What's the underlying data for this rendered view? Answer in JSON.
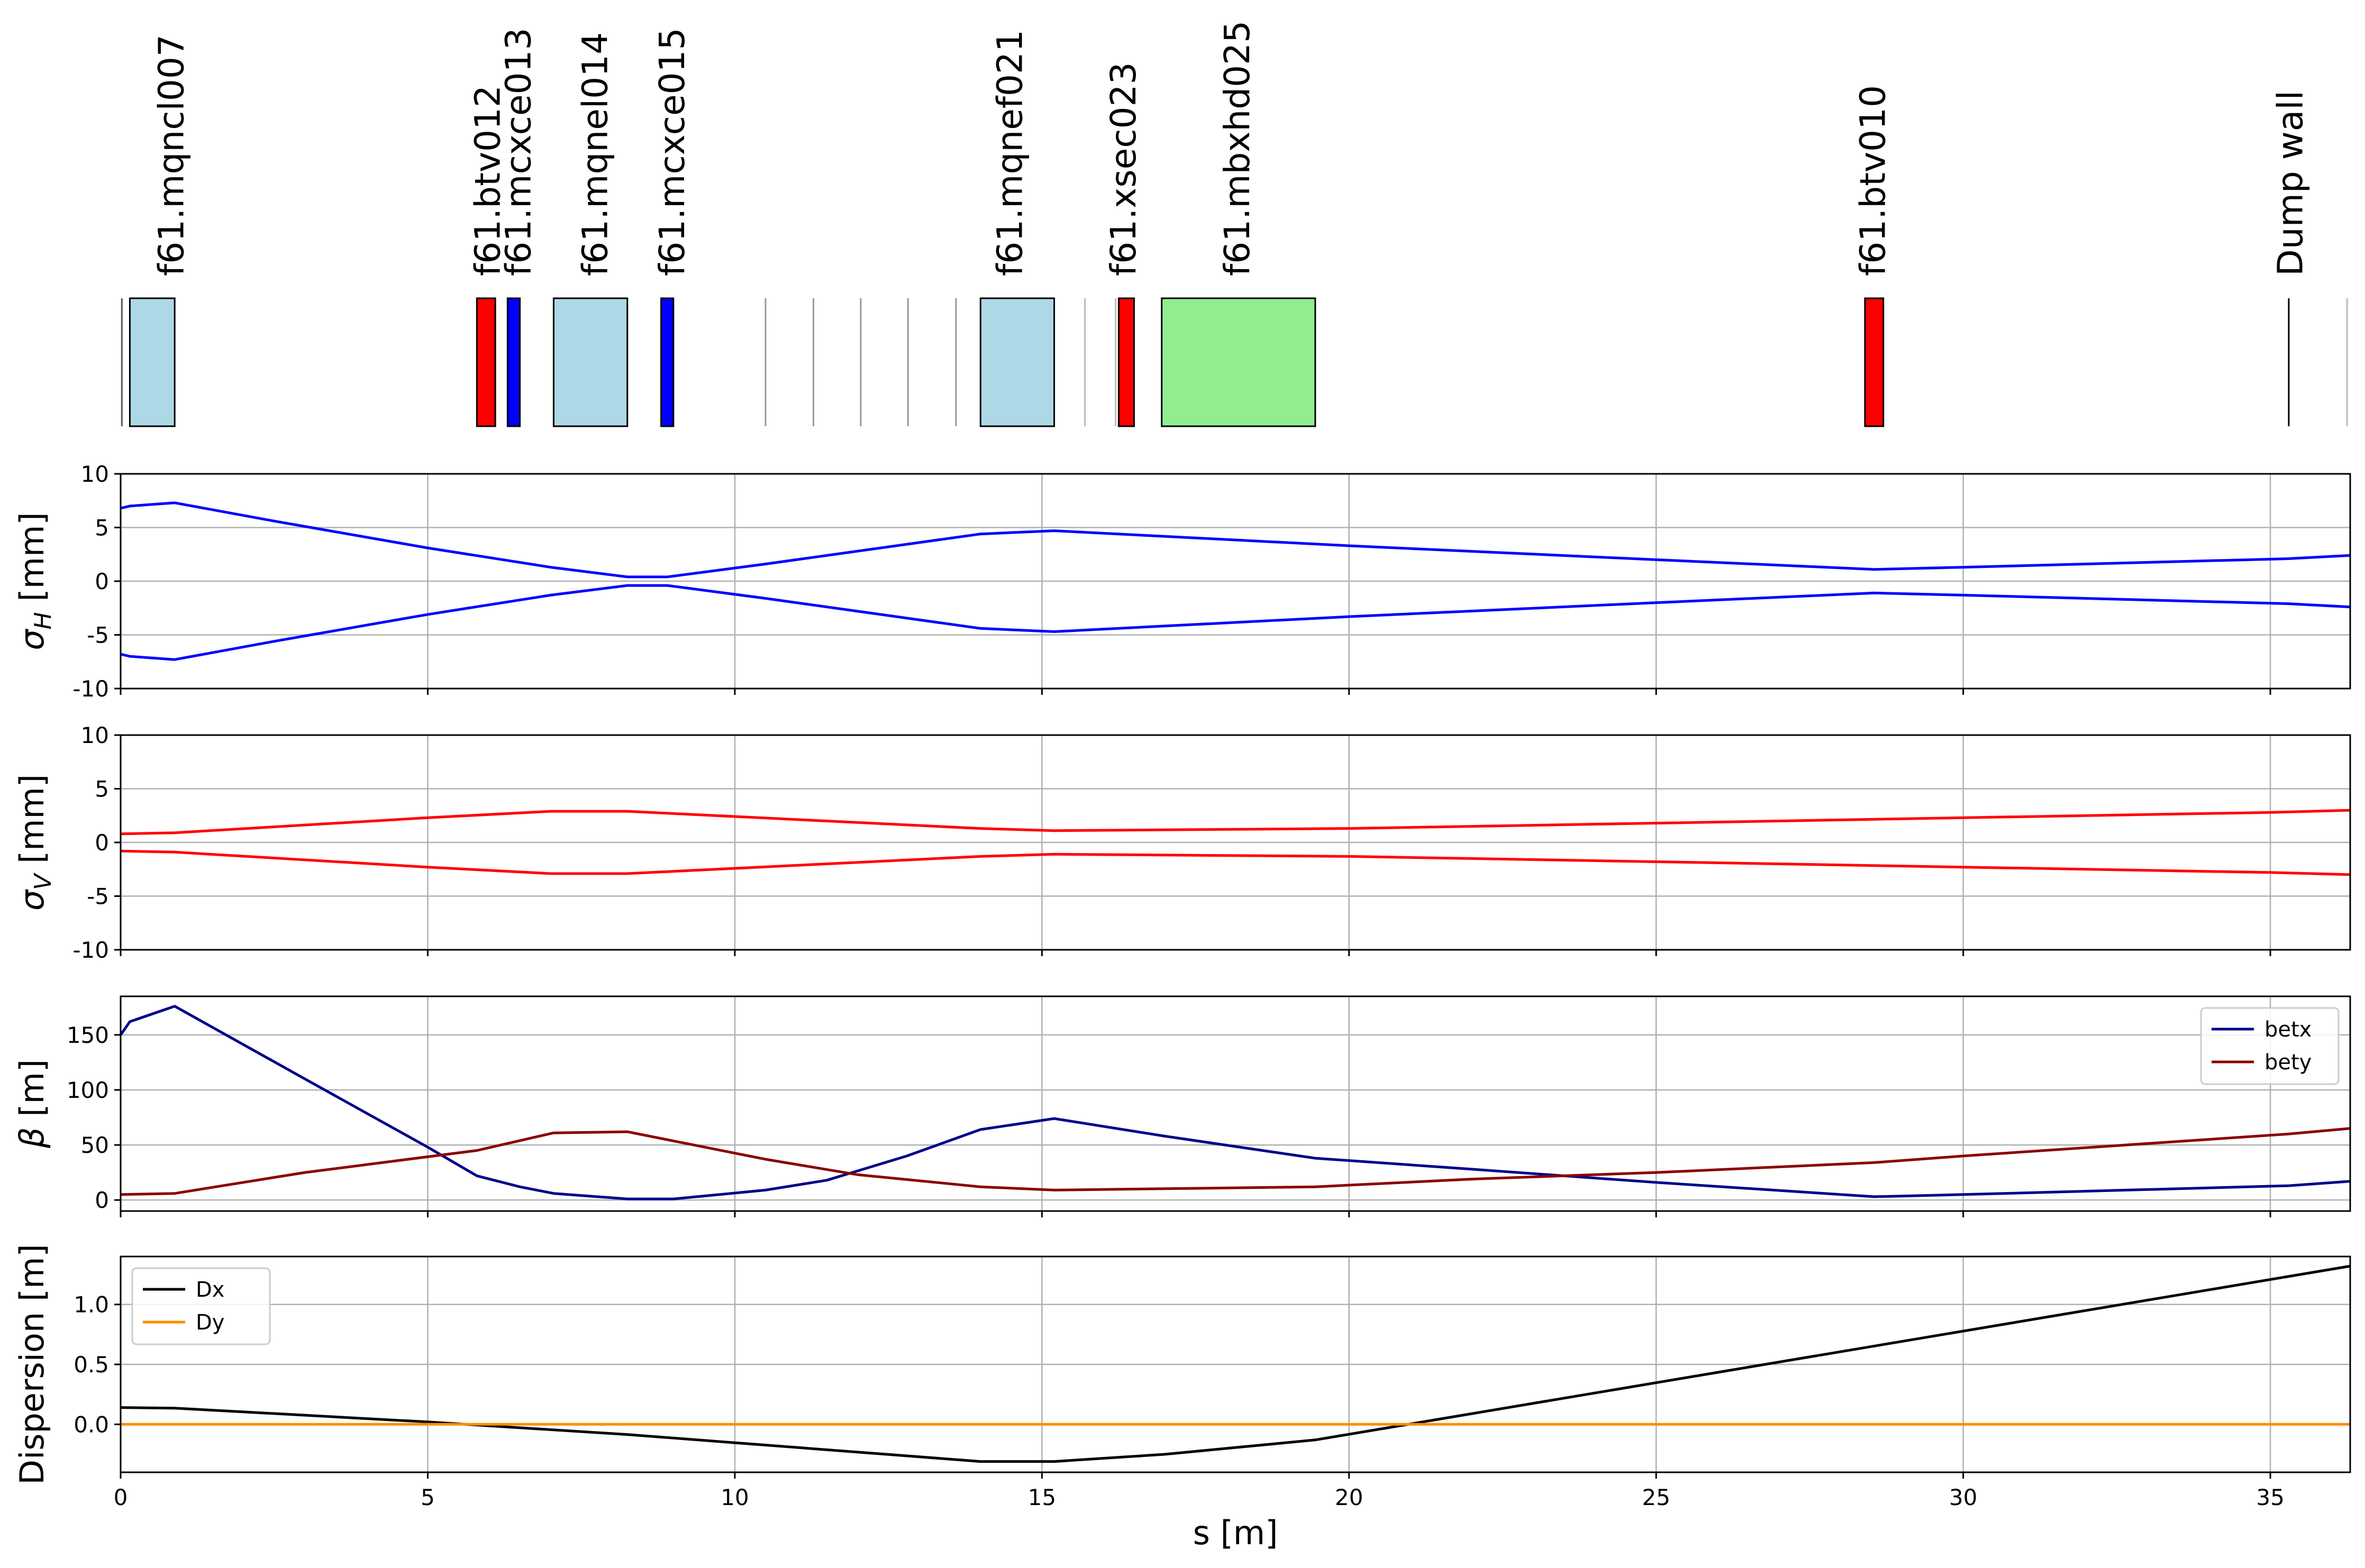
{
  "chart_data": [
    {
      "type": "layout",
      "element_labels": [
        {
          "name": "f61.mqncl007",
          "s": 0.85
        },
        {
          "name": "f61.btv012",
          "s": 6.0
        },
        {
          "name": "f61.mcxce013",
          "s": 6.5
        },
        {
          "name": "f61.mqnel014",
          "s": 7.75
        },
        {
          "name": "f61.mcxce015",
          "s": 9.0
        },
        {
          "name": "f61.mqnef021",
          "s": 14.5
        },
        {
          "name": "f61.xsec023",
          "s": 16.35
        },
        {
          "name": "f61.mbxhd025",
          "s": 18.2
        },
        {
          "name": "f61.btv010",
          "s": 28.55
        },
        {
          "name": "Dump wall",
          "s": 35.35
        }
      ],
      "elements": [
        {
          "kind": "quadrupole",
          "s_start": 0.15,
          "s_end": 0.88,
          "color": "#add8e6"
        },
        {
          "kind": "screen",
          "s_start": 5.8,
          "s_end": 6.1,
          "color": "#ff0000"
        },
        {
          "kind": "corrector",
          "s_start": 6.3,
          "s_end": 6.5,
          "color": "#0000ff"
        },
        {
          "kind": "quadrupole",
          "s_start": 7.05,
          "s_end": 8.25,
          "color": "#add8e6"
        },
        {
          "kind": "corrector",
          "s_start": 8.8,
          "s_end": 9.0,
          "color": "#0000ff"
        },
        {
          "kind": "quadrupole",
          "s_start": 14.0,
          "s_end": 15.2,
          "color": "#add8e6"
        },
        {
          "kind": "screen",
          "s_start": 16.25,
          "s_end": 16.5,
          "color": "#ff0000"
        },
        {
          "kind": "dipole",
          "s_start": 16.95,
          "s_end": 19.45,
          "color": "#90ee90"
        },
        {
          "kind": "screen",
          "s_start": 28.4,
          "s_end": 28.7,
          "color": "#ff0000"
        }
      ],
      "markers": [
        {
          "s": 0.02,
          "color": "#555555"
        },
        {
          "s": 10.5,
          "color": "#999999"
        },
        {
          "s": 11.28,
          "color": "#999999"
        },
        {
          "s": 12.05,
          "color": "#999999"
        },
        {
          "s": 12.82,
          "color": "#999999"
        },
        {
          "s": 13.6,
          "color": "#999999"
        },
        {
          "s": 15.7,
          "color": "#bbbbbb"
        },
        {
          "s": 16.2,
          "color": "#bbbbbb"
        },
        {
          "s": 35.3,
          "color": "#000000"
        },
        {
          "s": 36.25,
          "color": "#bbbbbb"
        }
      ]
    },
    {
      "type": "line",
      "ylabel": "σ_H [mm]",
      "ylim": [
        -10,
        10
      ],
      "yticks": [
        -10,
        -5,
        0,
        5,
        10
      ],
      "grid": true,
      "series": [
        {
          "color": "#0000ff",
          "x": [
            0,
            0.15,
            0.88,
            2.5,
            5,
            7,
            8.25,
            8.9,
            10.5,
            14,
            15.2,
            20,
            25,
            28.55,
            30,
            35.3,
            36.3
          ],
          "y": [
            6.8,
            7.0,
            7.3,
            5.6,
            3.1,
            1.3,
            0.4,
            0.4,
            1.6,
            4.4,
            4.7,
            3.3,
            2.0,
            1.1,
            1.3,
            2.1,
            2.4
          ]
        },
        {
          "color": "#0000ff",
          "x": [
            0,
            0.15,
            0.88,
            2.5,
            5,
            7,
            8.25,
            8.9,
            10.5,
            14,
            15.2,
            20,
            25,
            28.55,
            30,
            35.3,
            36.3
          ],
          "y": [
            -6.8,
            -7.0,
            -7.3,
            -5.6,
            -3.1,
            -1.3,
            -0.4,
            -0.4,
            -1.6,
            -4.4,
            -4.7,
            -3.3,
            -2.0,
            -1.1,
            -1.3,
            -2.1,
            -2.4
          ]
        }
      ]
    },
    {
      "type": "line",
      "ylabel": "σ_V [mm]",
      "ylim": [
        -10,
        10
      ],
      "yticks": [
        -10,
        -5,
        0,
        5,
        10
      ],
      "grid": true,
      "series": [
        {
          "color": "#ff0000",
          "x": [
            0,
            0.88,
            5,
            7,
            8.25,
            14,
            15.2,
            20,
            25,
            30,
            35,
            36.3
          ],
          "y": [
            0.8,
            0.9,
            2.3,
            2.9,
            2.9,
            1.3,
            1.1,
            1.3,
            1.8,
            2.3,
            2.8,
            3.0
          ]
        },
        {
          "color": "#ff0000",
          "x": [
            0,
            0.88,
            5,
            7,
            8.25,
            14,
            15.2,
            20,
            25,
            30,
            35,
            36.3
          ],
          "y": [
            -0.8,
            -0.9,
            -2.3,
            -2.9,
            -2.9,
            -1.3,
            -1.1,
            -1.3,
            -1.8,
            -2.3,
            -2.8,
            -3.0
          ]
        }
      ]
    },
    {
      "type": "line",
      "ylabel": "β [m]",
      "ylim": [
        -10,
        185
      ],
      "yticks": [
        0,
        50,
        100,
        150
      ],
      "grid": true,
      "legend": "top-right",
      "series": [
        {
          "name": "betx",
          "color": "#00008b",
          "x": [
            0,
            0.15,
            0.88,
            3,
            5,
            5.8,
            6.5,
            7.05,
            8.25,
            9,
            10.5,
            11.5,
            12.8,
            14,
            15.2,
            17,
            19.45,
            22,
            25,
            28.55,
            30,
            35.3,
            36.3
          ],
          "y": [
            150,
            162,
            176,
            110,
            48,
            22,
            12,
            6,
            1,
            1,
            9,
            18,
            40,
            64,
            74,
            58,
            38,
            28,
            16,
            3,
            5,
            13,
            17
          ]
        },
        {
          "name": "bety",
          "color": "#8b0000",
          "x": [
            0,
            0.88,
            3,
            5.8,
            7.05,
            8.25,
            10.5,
            12,
            14,
            15.2,
            19.45,
            22,
            25,
            28.55,
            30,
            35.3,
            36.3
          ],
          "y": [
            5,
            6,
            25,
            45,
            61,
            62,
            37,
            23,
            12,
            9,
            12,
            19,
            25,
            34,
            40,
            60,
            65
          ]
        }
      ]
    },
    {
      "type": "line",
      "ylabel": "Dispersion [m]",
      "xlabel": "s [m]",
      "ylim": [
        -0.4,
        1.4
      ],
      "yticks": [
        0.0,
        0.5,
        1.0
      ],
      "xlim": [
        0,
        36.3
      ],
      "xticks": [
        0,
        5,
        10,
        15,
        20,
        25,
        30,
        35
      ],
      "grid": true,
      "legend": "top-left",
      "series": [
        {
          "name": "Dx",
          "color": "#000000",
          "x": [
            0,
            0.88,
            5,
            8.25,
            14,
            15.2,
            17,
            19.45,
            20.5,
            36.3
          ],
          "y": [
            0.14,
            0.135,
            0.02,
            -0.085,
            -0.31,
            -0.31,
            -0.25,
            -0.13,
            -0.04,
            1.32
          ]
        },
        {
          "name": "Dy",
          "color": "#ff8c00",
          "x": [
            0,
            36.3
          ],
          "y": [
            0,
            0
          ]
        }
      ]
    }
  ]
}
